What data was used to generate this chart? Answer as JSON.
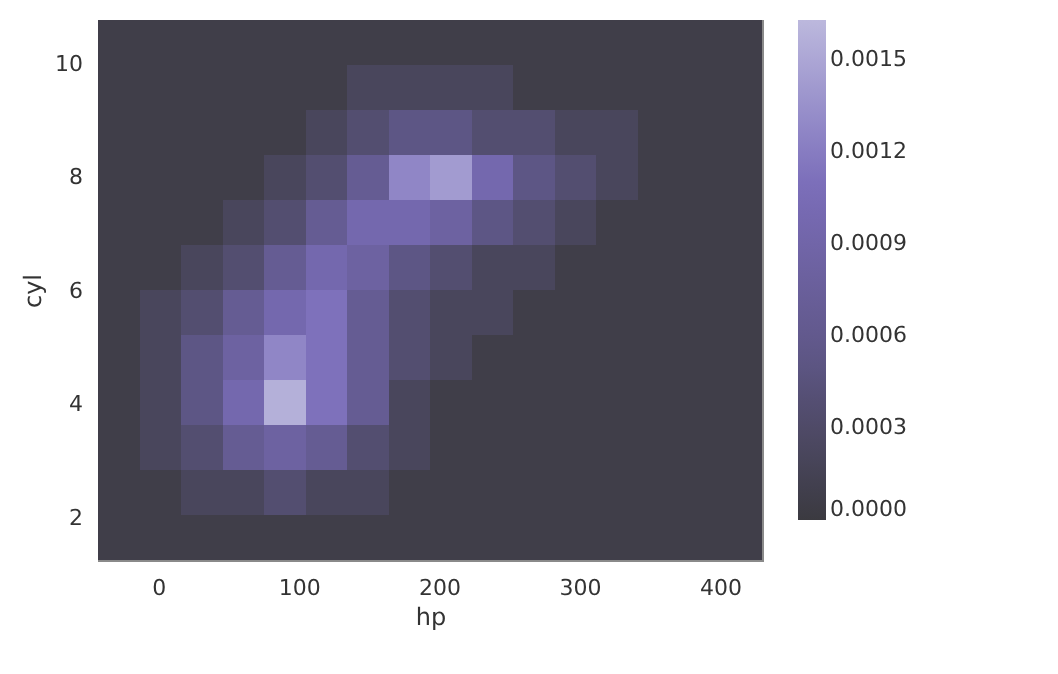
{
  "chart_data": {
    "type": "heatmap",
    "xlabel": "hp",
    "ylabel": "cyl",
    "xlim": [
      -43,
      430
    ],
    "ylim": [
      1.26,
      10.77
    ],
    "xticks": [
      0,
      100,
      200,
      300,
      400
    ],
    "yticks": [
      2,
      4,
      6,
      8,
      10
    ],
    "clim": [
      0,
      0.00163
    ],
    "cticks": [
      {
        "value": 0,
        "label": "0.0000"
      },
      0.0003,
      0.0006,
      0.0009,
      0.0012,
      0.0015
    ],
    "cells": [
      [
        7e-05,
        7e-05,
        7e-05,
        7e-05,
        7e-05,
        7e-05,
        7e-05,
        7e-05,
        7e-05,
        7e-05,
        7e-05,
        7e-05,
        7e-05,
        7e-05,
        7e-05,
        7e-05
      ],
      [
        7e-05,
        7e-05,
        7e-05,
        7e-05,
        7e-05,
        7e-05,
        0.00022,
        0.00022,
        0.00022,
        0.00022,
        7e-05,
        7e-05,
        7e-05,
        7e-05,
        7e-05,
        7e-05
      ],
      [
        7e-05,
        7e-05,
        7e-05,
        7e-05,
        7e-05,
        0.00022,
        0.00037,
        0.00052,
        0.00052,
        0.00037,
        0.00037,
        0.00022,
        0.00022,
        7e-05,
        7e-05,
        7e-05
      ],
      [
        7e-05,
        7e-05,
        7e-05,
        7e-05,
        0.00022,
        0.00037,
        0.00067,
        0.00127,
        0.00142,
        0.00097,
        0.00052,
        0.00037,
        0.00022,
        7e-05,
        7e-05,
        7e-05
      ],
      [
        7e-05,
        7e-05,
        7e-05,
        0.00022,
        0.00037,
        0.00067,
        0.00097,
        0.00097,
        0.00082,
        0.00052,
        0.00037,
        0.00022,
        7e-05,
        7e-05,
        7e-05,
        7e-05
      ],
      [
        7e-05,
        7e-05,
        0.00022,
        0.00037,
        0.00067,
        0.00097,
        0.00082,
        0.00052,
        0.00037,
        0.00022,
        0.00022,
        7e-05,
        7e-05,
        7e-05,
        7e-05,
        7e-05
      ],
      [
        7e-05,
        0.00022,
        0.00037,
        0.00067,
        0.00097,
        0.00112,
        0.00067,
        0.00037,
        0.00022,
        0.00022,
        7e-05,
        7e-05,
        7e-05,
        7e-05,
        7e-05,
        7e-05
      ],
      [
        7e-05,
        0.00022,
        0.00052,
        0.00082,
        0.00127,
        0.00112,
        0.00067,
        0.00037,
        0.00022,
        7e-05,
        7e-05,
        7e-05,
        7e-05,
        7e-05,
        7e-05,
        7e-05
      ],
      [
        7e-05,
        0.00022,
        0.00052,
        0.00097,
        0.00157,
        0.00112,
        0.00067,
        0.00022,
        7e-05,
        7e-05,
        7e-05,
        7e-05,
        7e-05,
        7e-05,
        7e-05,
        7e-05
      ],
      [
        7e-05,
        0.00022,
        0.00037,
        0.00067,
        0.00082,
        0.00067,
        0.00037,
        0.00022,
        7e-05,
        7e-05,
        7e-05,
        7e-05,
        7e-05,
        7e-05,
        7e-05,
        7e-05
      ],
      [
        7e-05,
        7e-05,
        0.00022,
        0.00022,
        0.00037,
        0.00022,
        0.00022,
        7e-05,
        7e-05,
        7e-05,
        7e-05,
        7e-05,
        7e-05,
        7e-05,
        7e-05,
        7e-05
      ],
      [
        7e-05,
        7e-05,
        7e-05,
        7e-05,
        7e-05,
        7e-05,
        7e-05,
        7e-05,
        7e-05,
        7e-05,
        7e-05,
        7e-05,
        7e-05,
        7e-05,
        7e-05,
        7e-05
      ]
    ]
  }
}
